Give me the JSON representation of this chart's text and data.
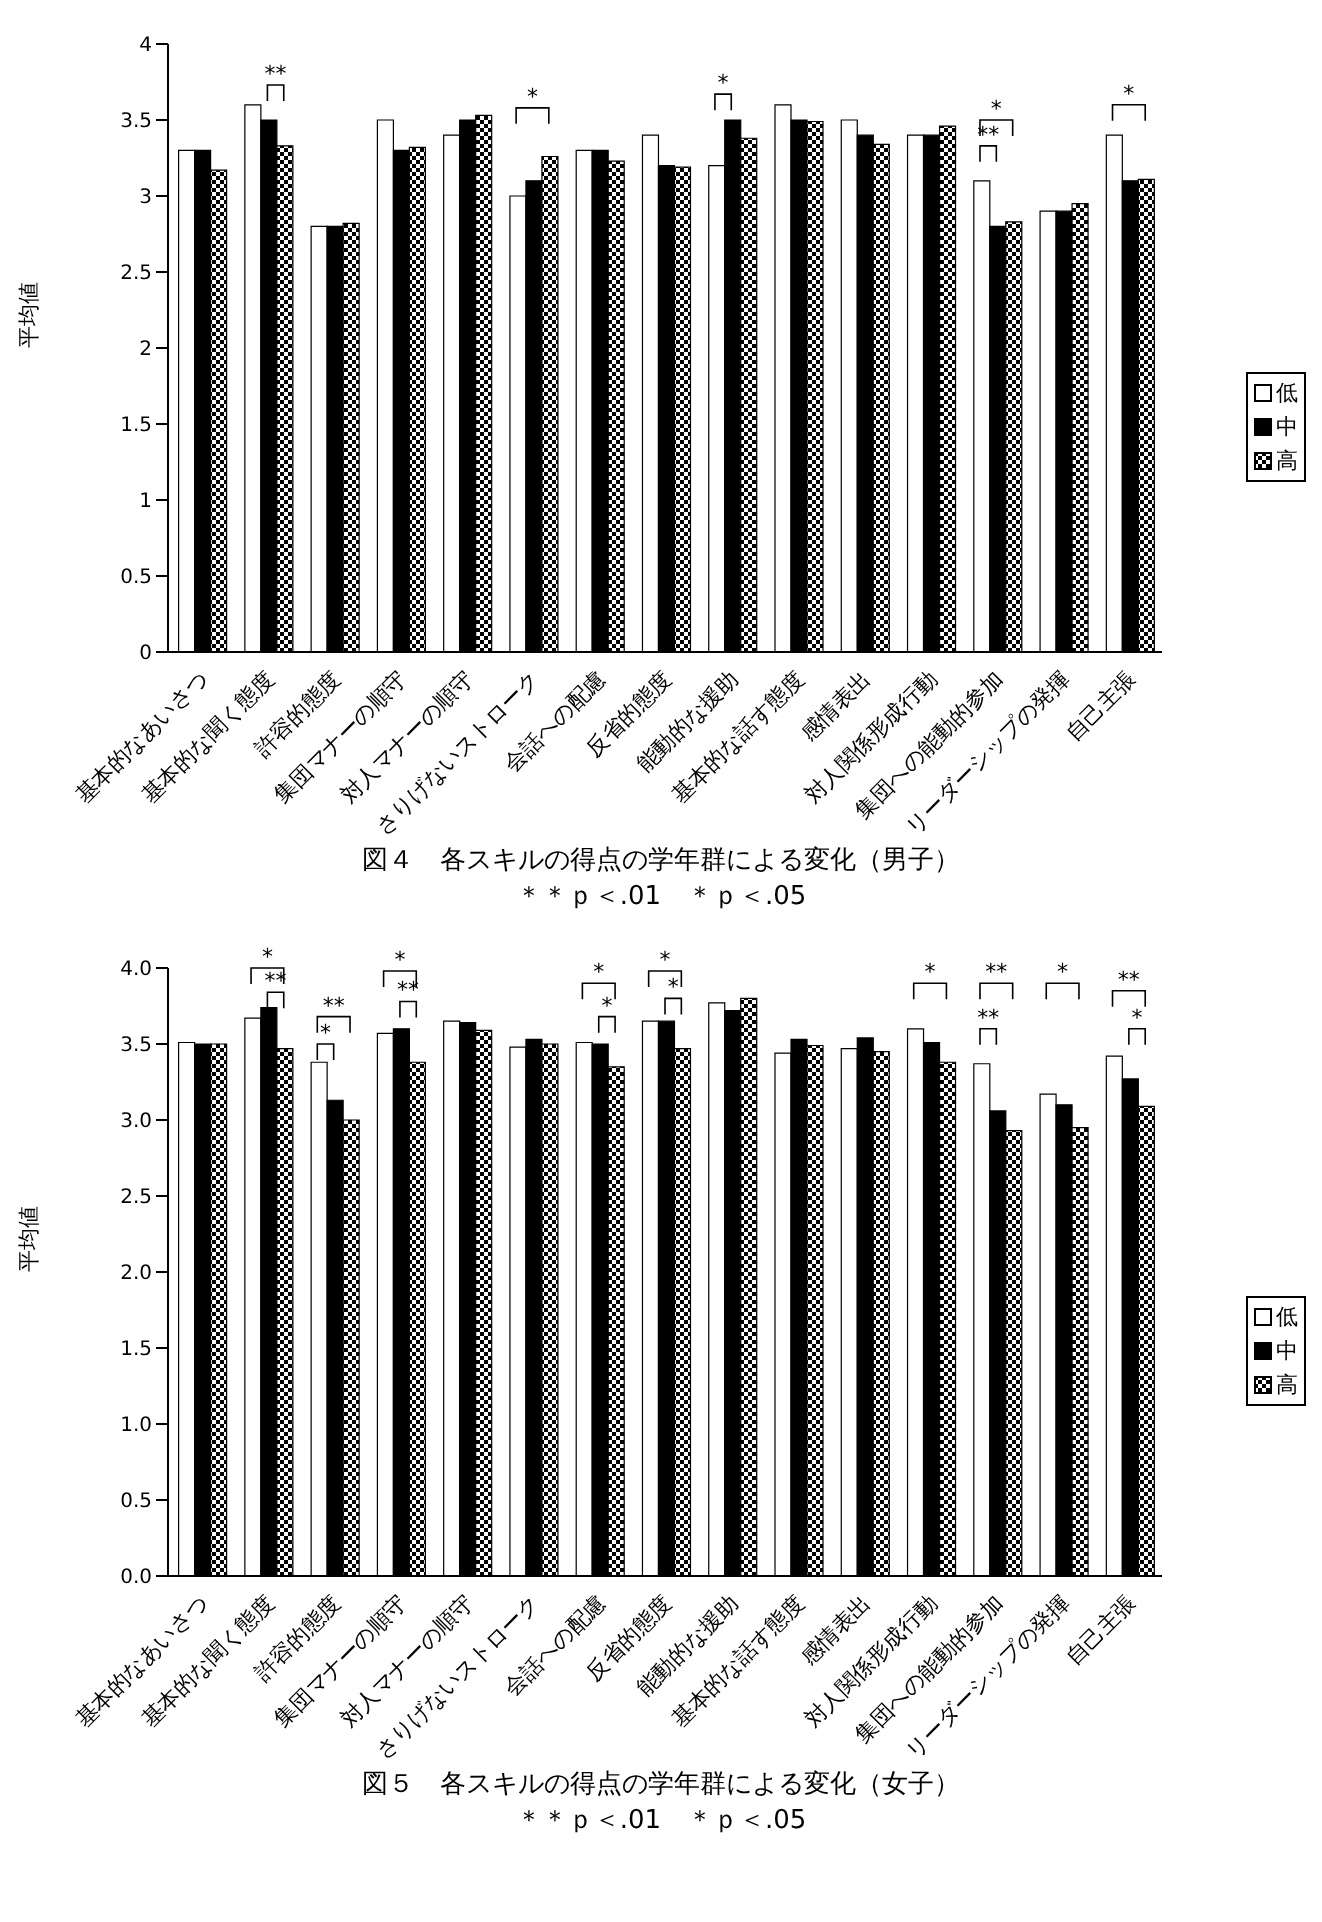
{
  "chart_data": [
    {
      "type": "bar",
      "title": "図４　各スキルの得点の学年群による変化（男子）",
      "subtitle": "＊＊ｐ＜.01　＊ｐ＜.05",
      "ylabel": "平均値",
      "categories": [
        "基本的なあいさつ",
        "基本的な聞く態度",
        "許容的態度",
        "集団マナーの順守",
        "対人マナーの順守",
        "さりげないストローク",
        "会話への配慮",
        "反省的態度",
        "能動的な援助",
        "基本的な話す態度",
        "感情表出",
        "対人関係形成行動",
        "集団への能動的参加",
        "リーダーシップの発揮",
        "自己主張"
      ],
      "series": [
        {
          "name": "低",
          "color": "#ffffff",
          "values": [
            3.3,
            3.6,
            2.8,
            3.5,
            3.4,
            3.0,
            3.3,
            3.4,
            3.2,
            3.6,
            3.5,
            3.4,
            3.1,
            2.9,
            3.4
          ]
        },
        {
          "name": "中",
          "color": "#000000",
          "values": [
            3.3,
            3.5,
            2.8,
            3.3,
            3.5,
            3.1,
            3.3,
            3.2,
            3.5,
            3.5,
            3.4,
            3.4,
            2.8,
            2.9,
            3.1
          ]
        },
        {
          "name": "高",
          "color": "#000000",
          "values": [
            3.17,
            3.33,
            2.82,
            3.32,
            3.53,
            3.26,
            3.23,
            3.19,
            3.38,
            3.49,
            3.34,
            3.46,
            2.83,
            2.95,
            3.11
          ]
        }
      ],
      "ylim": [
        0,
        4
      ],
      "yticks": [
        0,
        0.5,
        1,
        1.5,
        2,
        2.5,
        3,
        3.5,
        4
      ],
      "grid": false,
      "legend": "right",
      "annotations": [
        "**",
        "*",
        "*",
        "*",
        "**",
        "*"
      ]
    },
    {
      "type": "bar",
      "title": "図５　各スキルの得点の学年群による変化（女子）",
      "subtitle": "＊＊ｐ＜.01　＊ｐ＜.05",
      "ylabel": "平均値",
      "categories": [
        "基本的なあいさつ",
        "基本的な聞く態度",
        "許容的態度",
        "集団マナーの順守",
        "対人マナーの順守",
        "さりげないストローク",
        "会話への配慮",
        "反省的態度",
        "能動的な援助",
        "基本的な話す態度",
        "感情表出",
        "対人関係形成行動",
        "集団への能動的参加",
        "リーダーシップの発揮",
        "自己主張"
      ],
      "series": [
        {
          "name": "低",
          "color": "#ffffff",
          "values": [
            3.51,
            3.67,
            3.38,
            3.57,
            3.65,
            3.48,
            3.51,
            3.65,
            3.77,
            3.44,
            3.47,
            3.6,
            3.37,
            3.17,
            3.42
          ]
        },
        {
          "name": "中",
          "color": "#000000",
          "values": [
            3.5,
            3.74,
            3.13,
            3.6,
            3.64,
            3.53,
            3.5,
            3.65,
            3.72,
            3.53,
            3.54,
            3.51,
            3.06,
            3.1,
            3.27
          ]
        },
        {
          "name": "高",
          "color": "#000000",
          "values": [
            3.5,
            3.47,
            3.0,
            3.38,
            3.59,
            3.5,
            3.35,
            3.47,
            3.8,
            3.49,
            3.45,
            3.38,
            2.93,
            2.95,
            3.09
          ]
        }
      ],
      "ylim": [
        0,
        4
      ],
      "yticks": [
        {
          "value": 0,
          "label": "0.0"
        },
        {
          "value": 0.5,
          "label": "0.5"
        },
        {
          "value": 1,
          "label": "1.0"
        },
        {
          "value": 1.5,
          "label": "1.5"
        },
        {
          "value": 2,
          "label": "2.0"
        },
        {
          "value": 2.5,
          "label": "2.5"
        },
        {
          "value": 3,
          "label": "3.0"
        },
        {
          "value": 3.5,
          "label": "3.5"
        },
        {
          "value": 4,
          "label": "4.0"
        }
      ],
      "grid": false,
      "legend": "right",
      "annotations": [
        "*",
        "**",
        "**",
        "*",
        "*",
        "**",
        "*",
        "*",
        "*",
        "*",
        "*",
        "**",
        "**",
        "*",
        "**",
        "*"
      ]
    }
  ]
}
